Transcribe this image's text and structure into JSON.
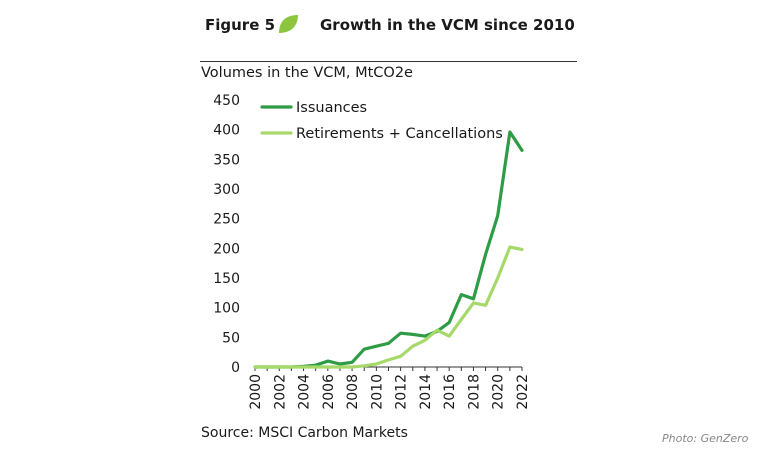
{
  "header": {
    "figure_label": "Figure 5",
    "title": "Growth in the VCM since 2010",
    "subtitle": "Volumes in the VCM, MtCO2e"
  },
  "footer": {
    "source": "Source: MSCI Carbon Markets",
    "credit": "Photo: GenZero"
  },
  "colors": {
    "issuances": "#2e9b45",
    "retirements": "#a6d96a",
    "leaf": "#8cc63f",
    "axis": "#333333"
  },
  "chart_data": {
    "type": "line",
    "title": "Volumes in the VCM, MtCO2e",
    "xlabel": "",
    "ylabel": "",
    "x": [
      2000,
      2001,
      2002,
      2003,
      2004,
      2005,
      2006,
      2007,
      2008,
      2009,
      2010,
      2011,
      2012,
      2013,
      2014,
      2015,
      2016,
      2017,
      2018,
      2019,
      2020,
      2021,
      2022
    ],
    "x_ticks": [
      "2000",
      "2002",
      "2004",
      "2006",
      "2008",
      "2010",
      "2012",
      "2014",
      "2016",
      "2018",
      "2020",
      "2022"
    ],
    "ylim": [
      0,
      450
    ],
    "y_ticks": [
      0,
      50,
      100,
      150,
      200,
      250,
      300,
      350,
      400,
      450
    ],
    "grid": false,
    "legend_position": "top-left",
    "series": [
      {
        "name": "Issuances",
        "color": "#2e9b45",
        "values": [
          0,
          0,
          0,
          0,
          1,
          3,
          10,
          5,
          8,
          30,
          35,
          40,
          57,
          55,
          52,
          60,
          75,
          122,
          115,
          190,
          255,
          396,
          365
        ]
      },
      {
        "name": "Retirements + Cancellations",
        "color": "#a6d96a",
        "values": [
          0,
          0,
          0,
          0,
          0,
          0,
          0,
          0,
          0,
          2,
          5,
          12,
          18,
          35,
          45,
          62,
          52,
          80,
          108,
          104,
          150,
          202,
          198
        ]
      }
    ]
  }
}
